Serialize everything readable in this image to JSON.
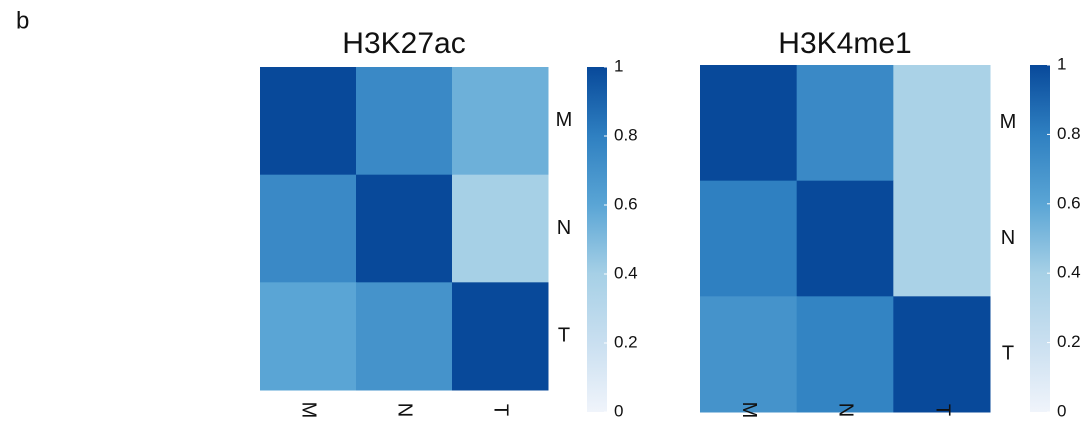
{
  "panel_label": "b",
  "chart_data": [
    {
      "type": "heatmap",
      "title": "H3K27ac",
      "x_categories": [
        "M",
        "N",
        "T"
      ],
      "y_categories": [
        "M",
        "N",
        "T"
      ],
      "values": [
        [
          1,
          0.75,
          0.55
        ],
        [
          0.75,
          1,
          0.4
        ],
        [
          0.6,
          0.7,
          1
        ]
      ],
      "colorscale": [
        "#f0f4fb",
        "#c9dff0",
        "#a6d0e6",
        "#5aa5d5",
        "#2f80c1",
        "#08499a"
      ],
      "zlim": [
        0,
        1
      ],
      "zticks": [
        0,
        0.2,
        0.4,
        0.6,
        0.8,
        1
      ]
    },
    {
      "type": "heatmap",
      "title": "H3K4me1",
      "x_categories": [
        "M",
        "N",
        "T"
      ],
      "y_categories": [
        "M",
        "N",
        "T"
      ],
      "values": [
        [
          1,
          0.75,
          0.38
        ],
        [
          0.8,
          1,
          0.38
        ],
        [
          0.7,
          0.78,
          1
        ]
      ],
      "colorscale": [
        "#f0f4fb",
        "#c9dff0",
        "#a6d0e6",
        "#5aa5d5",
        "#2f80c1",
        "#08499a"
      ],
      "zlim": [
        0,
        1
      ],
      "zticks": [
        0,
        0.2,
        0.4,
        0.6,
        0.8,
        1
      ]
    }
  ]
}
